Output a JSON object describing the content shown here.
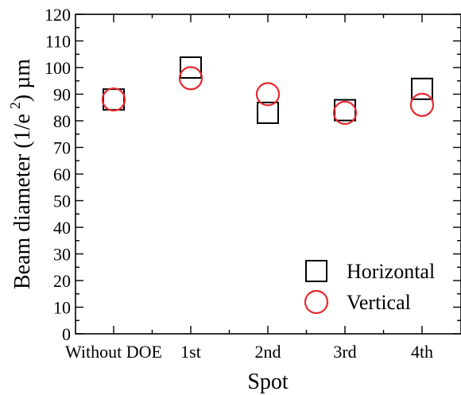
{
  "chart_data": {
    "type": "scatter",
    "xlabel": "Spot",
    "ylabel_main": "Beam diameter (1/e",
    "ylabel_sup": "2",
    "ylabel_unit": ") µm",
    "categories": [
      "Without DOE",
      "1st",
      "2nd",
      "3rd",
      "4th"
    ],
    "ylim": [
      0,
      120
    ],
    "yticks": [
      0,
      10,
      20,
      30,
      40,
      50,
      60,
      70,
      80,
      90,
      100,
      110,
      120
    ],
    "legend_position": "bottom-right",
    "series": [
      {
        "name": "Horizontal",
        "marker": "square",
        "color": "#000000",
        "values": [
          88,
          100,
          83,
          84,
          92
        ]
      },
      {
        "name": "Vertical",
        "marker": "circle",
        "color": "#e8282f",
        "values": [
          88,
          96,
          90,
          83,
          86
        ]
      }
    ]
  }
}
